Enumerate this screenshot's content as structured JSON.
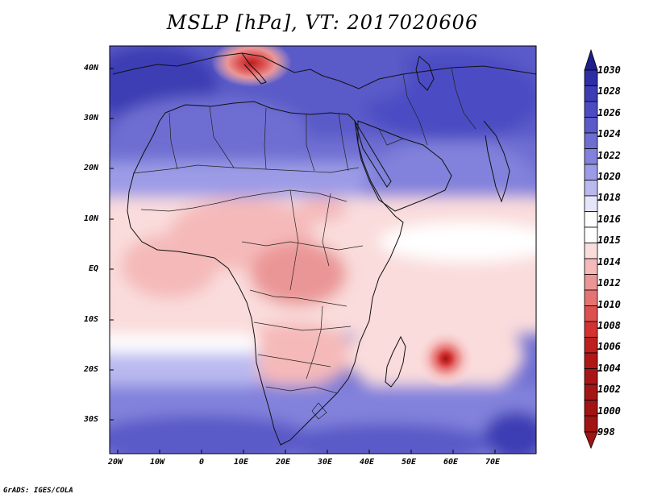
{
  "title": "MSLP [hPa], VT: 2017020606",
  "credit": "GrADS: IGES/COLA",
  "y_axis_labels": [
    "40N",
    "30N",
    "20N",
    "10N",
    "EQ",
    "10S",
    "20S",
    "30S"
  ],
  "x_axis_labels": [
    "20W",
    "10W",
    "0",
    "10E",
    "20E",
    "30E",
    "40E",
    "50E",
    "60E",
    "70E"
  ],
  "colorbar": {
    "labels": [
      "1030",
      "1028",
      "1026",
      "1024",
      "1022",
      "1020",
      "1018",
      "1016",
      "1015",
      "1014",
      "1012",
      "1010",
      "1008",
      "1006",
      "1004",
      "1002",
      "1000",
      "998"
    ],
    "colors": [
      "#1e1e8c",
      "#2d2da5",
      "#3c3cb4",
      "#4b4bc3",
      "#5a5ac8",
      "#6e6ed2",
      "#8282dc",
      "#9b9be6",
      "#b9b9f0",
      "#e6e6fa",
      "#ffffff",
      "#fadcdc",
      "#f5b9b9",
      "#eb9696",
      "#e67373",
      "#dc5050",
      "#d23232",
      "#be1e1e",
      "#a01414"
    ]
  },
  "features": {
    "low_center_label": "tropical low near 57E 18S",
    "med_low_label": "low over Adriatic / Balkans"
  }
}
